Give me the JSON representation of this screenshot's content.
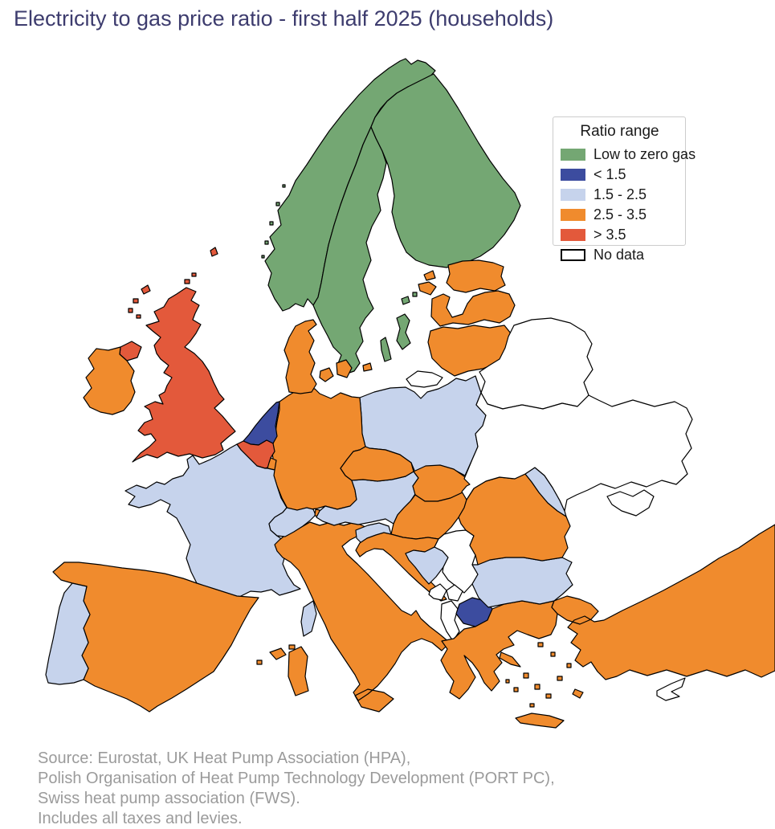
{
  "title": "Electricity to gas price ratio - first half 2025 (households)",
  "styles": {
    "title_color": "#3d3c6e",
    "source_color": "#9b9b9b",
    "map_stroke": "#000000",
    "legend_border": "#cccccc",
    "background": "#ffffff"
  },
  "legend": {
    "title": "Ratio range",
    "items": [
      {
        "id": "low_zero",
        "label": "Low to zero gas",
        "color": "#74a773",
        "outlined": false
      },
      {
        "id": "lt15",
        "label": "< 1.5",
        "color": "#3c4c9f",
        "outlined": false
      },
      {
        "id": "b1525",
        "label": "1.5 - 2.5",
        "color": "#c6d3ec",
        "outlined": false
      },
      {
        "id": "b2535",
        "label": "2.5 - 3.5",
        "color": "#f08b2d",
        "outlined": false
      },
      {
        "id": "gt35",
        "label": "> 3.5",
        "color": "#e3593b",
        "outlined": false
      },
      {
        "id": "nodata",
        "label": "No data",
        "color": "#ffffff",
        "outlined": true
      }
    ]
  },
  "map": {
    "countries": [
      {
        "id": "norway",
        "name": "Norway",
        "category": "low_zero"
      },
      {
        "id": "sweden",
        "name": "Sweden",
        "category": "low_zero"
      },
      {
        "id": "finland",
        "name": "Finland",
        "category": "low_zero"
      },
      {
        "id": "estonia",
        "name": "Estonia",
        "category": "b2535"
      },
      {
        "id": "latvia",
        "name": "Latvia",
        "category": "b2535"
      },
      {
        "id": "lithuania",
        "name": "Lithuania",
        "category": "b2535"
      },
      {
        "id": "kaliningrad",
        "name": "Kaliningrad (Russia)",
        "category": "nodata"
      },
      {
        "id": "belarus",
        "name": "Belarus",
        "category": "nodata"
      },
      {
        "id": "poland",
        "name": "Poland",
        "category": "b1525"
      },
      {
        "id": "germany",
        "name": "Germany",
        "category": "b2535"
      },
      {
        "id": "denmark",
        "name": "Denmark",
        "category": "b2535"
      },
      {
        "id": "netherlands",
        "name": "Netherlands",
        "category": "lt15"
      },
      {
        "id": "belgium",
        "name": "Belgium",
        "category": "gt35"
      },
      {
        "id": "luxembourg",
        "name": "Luxembourg",
        "category": "b2535"
      },
      {
        "id": "france",
        "name": "France",
        "category": "b1525"
      },
      {
        "id": "united-kingdom",
        "name": "United Kingdom",
        "category": "gt35"
      },
      {
        "id": "ireland",
        "name": "Ireland",
        "category": "b2535"
      },
      {
        "id": "spain",
        "name": "Spain",
        "category": "b2535"
      },
      {
        "id": "portugal",
        "name": "Portugal",
        "category": "b1525"
      },
      {
        "id": "italy",
        "name": "Italy",
        "category": "b2535"
      },
      {
        "id": "switzerland",
        "name": "Switzerland",
        "category": "b1525"
      },
      {
        "id": "liechtenstein",
        "name": "Liechtenstein",
        "category": "b2535"
      },
      {
        "id": "austria",
        "name": "Austria",
        "category": "b1525"
      },
      {
        "id": "czechia",
        "name": "Czechia",
        "category": "b2535"
      },
      {
        "id": "slovakia",
        "name": "Slovakia",
        "category": "b2535"
      },
      {
        "id": "hungary",
        "name": "Hungary",
        "category": "b2535"
      },
      {
        "id": "slovenia",
        "name": "Slovenia",
        "category": "b1525"
      },
      {
        "id": "croatia",
        "name": "Croatia",
        "category": "b2535"
      },
      {
        "id": "bosnia-herzegovina",
        "name": "Bosnia and Herzegovina",
        "category": "b1525"
      },
      {
        "id": "serbia",
        "name": "Serbia",
        "category": "nodata"
      },
      {
        "id": "montenegro",
        "name": "Montenegro",
        "category": "nodata"
      },
      {
        "id": "kosovo",
        "name": "Kosovo",
        "category": "nodata"
      },
      {
        "id": "albania",
        "name": "Albania",
        "category": "nodata"
      },
      {
        "id": "north-macedonia",
        "name": "North Macedonia",
        "category": "lt15"
      },
      {
        "id": "greece",
        "name": "Greece",
        "category": "b2535"
      },
      {
        "id": "bulgaria",
        "name": "Bulgaria",
        "category": "b1525"
      },
      {
        "id": "romania",
        "name": "Romania",
        "category": "b2535"
      },
      {
        "id": "moldova",
        "name": "Moldova",
        "category": "b1525"
      },
      {
        "id": "ukraine",
        "name": "Ukraine",
        "category": "nodata"
      },
      {
        "id": "crimea",
        "name": "Crimea",
        "category": "nodata"
      },
      {
        "id": "turkey",
        "name": "Turkey",
        "category": "b2535"
      },
      {
        "id": "cyprus",
        "name": "Cyprus",
        "category": "nodata"
      }
    ]
  },
  "source_lines": [
    "Source: Eurostat, UK Heat Pump Association (HPA),",
    "Polish Organisation of Heat Pump Technology Development (PORT PC),",
    "Swiss heat pump association (FWS).",
    "Includes all taxes and levies."
  ]
}
